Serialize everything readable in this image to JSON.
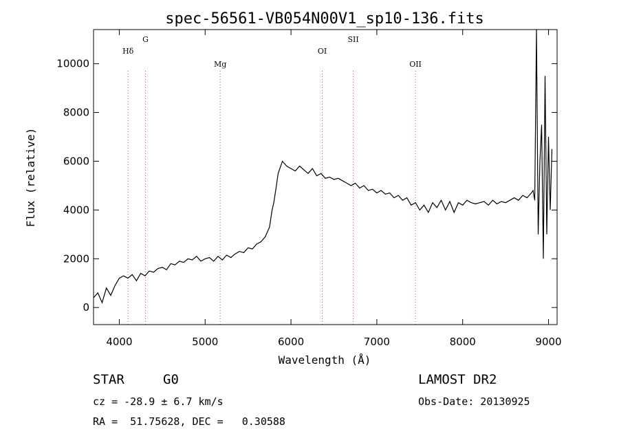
{
  "chart_data": {
    "type": "line",
    "title": "spec-56561-VB054N00V1_sp10-136.fits",
    "xlabel": "Wavelength (Å)",
    "ylabel": "Flux (relative)",
    "xlim": [
      3700,
      9100
    ],
    "ylim": [
      -700,
      11400
    ],
    "xticks": [
      4000,
      5000,
      6000,
      7000,
      8000,
      9000
    ],
    "yticks": [
      0,
      2000,
      4000,
      6000,
      8000,
      10000
    ],
    "grid": false,
    "legend": "none",
    "line_color": "#000000",
    "marker_color": "#d04040",
    "lines": [
      {
        "label": "Hδ",
        "wavelength": 4102
      },
      {
        "label": "G",
        "wavelength": 4305
      },
      {
        "label": "Mg",
        "wavelength": 5175
      },
      {
        "label": "OI",
        "wavelength": 6364
      },
      {
        "label": "SII",
        "wavelength": 6725
      },
      {
        "label": "OII",
        "wavelength": 7450
      }
    ],
    "series": [
      {
        "x": [
          3700,
          3750,
          3800,
          3850,
          3900,
          3950,
          4000,
          4050,
          4100,
          4150,
          4200,
          4250,
          4300,
          4350,
          4400,
          4450,
          4500,
          4550,
          4600,
          4650,
          4700,
          4750,
          4800,
          4850,
          4900,
          4950,
          5000,
          5050,
          5100,
          5150,
          5200,
          5250,
          5300,
          5350,
          5400,
          5450,
          5500,
          5550,
          5600,
          5650,
          5700,
          5750,
          5780,
          5800,
          5830,
          5850,
          5900,
          5950,
          6000,
          6050,
          6100,
          6150,
          6200,
          6250,
          6300,
          6350,
          6400,
          6450,
          6500,
          6550,
          6600,
          6650,
          6700,
          6750,
          6800,
          6850,
          6900,
          6950,
          7000,
          7050,
          7100,
          7150,
          7200,
          7250,
          7300,
          7350,
          7400,
          7450,
          7500,
          7550,
          7600,
          7650,
          7700,
          7750,
          7800,
          7850,
          7900,
          7950,
          8000,
          8050,
          8100,
          8150,
          8200,
          8250,
          8300,
          8350,
          8400,
          8450,
          8500,
          8550,
          8600,
          8650,
          8700,
          8750,
          8800,
          8820,
          8840,
          8860,
          8880,
          8900,
          8920,
          8940,
          8960,
          8980,
          9000,
          9020,
          9040
        ],
        "y": [
          400,
          600,
          200,
          800,
          500,
          900,
          1200,
          1300,
          1200,
          1350,
          1100,
          1400,
          1300,
          1500,
          1450,
          1600,
          1650,
          1550,
          1800,
          1750,
          1900,
          1850,
          2000,
          1950,
          2100,
          1900,
          2000,
          2050,
          1900,
          2100,
          1950,
          2150,
          2050,
          2200,
          2300,
          2250,
          2450,
          2400,
          2600,
          2700,
          2900,
          3300,
          4000,
          4300,
          5000,
          5500,
          6000,
          5800,
          5700,
          5600,
          5800,
          5650,
          5500,
          5700,
          5400,
          5500,
          5300,
          5350,
          5250,
          5300,
          5200,
          5100,
          5000,
          5100,
          4900,
          5000,
          4800,
          4850,
          4700,
          4800,
          4650,
          4700,
          4500,
          4600,
          4400,
          4500,
          4200,
          4300,
          4000,
          4200,
          3900,
          4300,
          4100,
          4400,
          4000,
          4350,
          3900,
          4300,
          4200,
          4400,
          4300,
          4250,
          4300,
          4350,
          4200,
          4400,
          4250,
          4350,
          4300,
          4400,
          4500,
          4400,
          4600,
          4500,
          4700,
          4800,
          4400,
          11400,
          3000,
          6000,
          7500,
          2000,
          9500,
          3000,
          7000,
          4000,
          6500
        ]
      }
    ]
  },
  "info": {
    "class_label": "STAR",
    "subclass": "G0",
    "survey": "LAMOST DR2",
    "cz": "cz = -28.9 ± 6.7 km/s",
    "obs_date": "Obs-Date: 20130925",
    "coords": "RA =  51.75628, DEC =   0.30588"
  }
}
